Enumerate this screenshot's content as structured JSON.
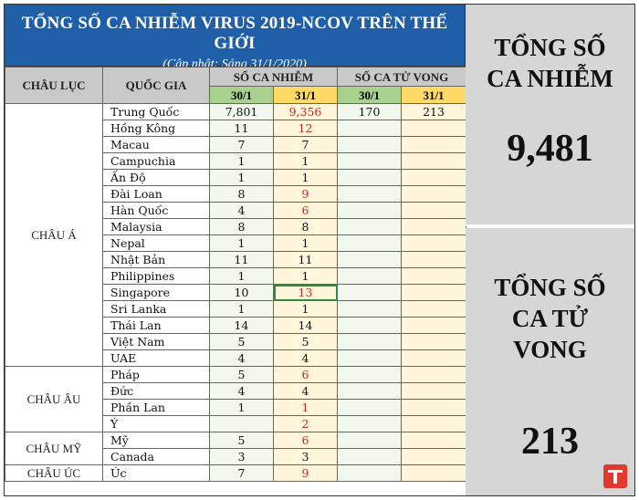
{
  "header": {
    "title": "TỔNG SỐ CA NHIỄM VIRUS 2019-NCOV TRÊN THẾ GIỚI",
    "subtitle": "(Cập nhật: Sáng 31/1/2020)"
  },
  "table": {
    "col_continent": "CHÂU LỤC",
    "col_country": "QUỐC GIA",
    "group_cases": "SỐ CA NHIỄM",
    "group_deaths": "SỐ CA TỬ VONG",
    "date_a": "30/1",
    "date_b": "31/1",
    "groups": [
      {
        "continent": "CHÂU Á",
        "rows": [
          {
            "country": "Trung Quốc",
            "c30": "7,801",
            "c31": "9,356",
            "d30": "170",
            "d31": "213",
            "c31_red": true
          },
          {
            "country": "Hồng Kông",
            "c30": "11",
            "c31": "12",
            "d30": "",
            "d31": "",
            "c31_red": true
          },
          {
            "country": "Macau",
            "c30": "7",
            "c31": "7",
            "d30": "",
            "d31": "",
            "c31_red": false
          },
          {
            "country": "Campuchia",
            "c30": "1",
            "c31": "1",
            "d30": "",
            "d31": "",
            "c31_red": false
          },
          {
            "country": "Ấn Độ",
            "c30": "1",
            "c31": "1",
            "d30": "",
            "d31": "",
            "c31_red": false
          },
          {
            "country": "Đài Loan",
            "c30": "8",
            "c31": "9",
            "d30": "",
            "d31": "",
            "c31_red": true
          },
          {
            "country": "Hàn Quốc",
            "c30": "4",
            "c31": "6",
            "d30": "",
            "d31": "",
            "c31_red": true
          },
          {
            "country": "Malaysia",
            "c30": "8",
            "c31": "8",
            "d30": "",
            "d31": "",
            "c31_red": false
          },
          {
            "country": "Nepal",
            "c30": "1",
            "c31": "1",
            "d30": "",
            "d31": "",
            "c31_red": false
          },
          {
            "country": "Nhật Bản",
            "c30": "11",
            "c31": "11",
            "d30": "",
            "d31": "",
            "c31_red": false
          },
          {
            "country": "Philippines",
            "c30": "1",
            "c31": "1",
            "d30": "",
            "d31": "",
            "c31_red": false
          },
          {
            "country": "Singapore",
            "c30": "10",
            "c31": "13",
            "d30": "",
            "d31": "",
            "c31_red": true
          },
          {
            "country": "Sri Lanka",
            "c30": "1",
            "c31": "1",
            "d30": "",
            "d31": "",
            "c31_red": false
          },
          {
            "country": "Thái Lan",
            "c30": "14",
            "c31": "14",
            "d30": "",
            "d31": "",
            "c31_red": false
          },
          {
            "country": "Việt Nam",
            "c30": "5",
            "c31": "5",
            "d30": "",
            "d31": "",
            "c31_red": false
          },
          {
            "country": "UAE",
            "c30": "4",
            "c31": "4",
            "d30": "",
            "d31": "",
            "c31_red": false
          }
        ]
      },
      {
        "continent": "CHÂU ÂU",
        "rows": [
          {
            "country": "Pháp",
            "c30": "5",
            "c31": "6",
            "d30": "",
            "d31": "",
            "c31_red": true
          },
          {
            "country": "Đức",
            "c30": "4",
            "c31": "4",
            "d30": "",
            "d31": "",
            "c31_red": false
          },
          {
            "country": "Phần Lan",
            "c30": "1",
            "c31": "1",
            "d30": "",
            "d31": "",
            "c31_red": true
          },
          {
            "country": "Ý",
            "c30": "",
            "c31": "2",
            "d30": "",
            "d31": "",
            "c31_red": true
          }
        ]
      },
      {
        "continent": "CHÂU MỸ",
        "rows": [
          {
            "country": "Mỹ",
            "c30": "5",
            "c31": "6",
            "d30": "",
            "d31": "",
            "c31_red": true
          },
          {
            "country": "Canada",
            "c30": "3",
            "c31": "3",
            "d30": "",
            "d31": "",
            "c31_red": false
          }
        ]
      },
      {
        "continent": "CHÂU ÚC",
        "rows": [
          {
            "country": "Úc",
            "c30": "7",
            "c31": "9",
            "d30": "",
            "d31": "",
            "c31_red": true
          }
        ]
      }
    ]
  },
  "summary": {
    "cases_label": "TỔNG SỐ CA NHIỄM",
    "cases_total": "9,481",
    "deaths_label": "TỔNG SỐ CA TỬ VONG",
    "deaths_total": "213"
  },
  "colors": {
    "header_bg": "#1f5fa8",
    "date_green": "#a9d18e",
    "date_yellow": "#ffd966",
    "increase_red": "#b8302a",
    "logo_red": "#e03a2f"
  },
  "logo": {
    "icon": "publisher-logo-icon"
  }
}
